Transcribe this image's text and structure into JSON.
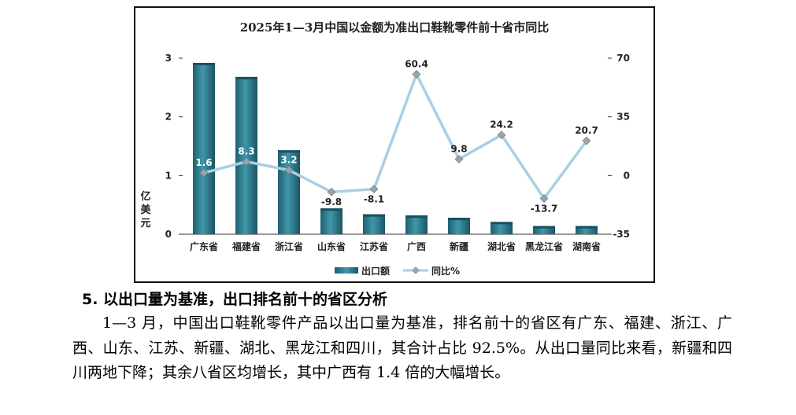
{
  "chart_data": {
    "type": "bar",
    "title": "2025年1—3月中国以金额为准出口鞋靴零件前十省市同比",
    "categories": [
      "广东省",
      "福建省",
      "浙江省",
      "山东省",
      "江苏省",
      "广西",
      "新疆",
      "湖北省",
      "黑龙江省",
      "湖南省"
    ],
    "series": [
      {
        "name": "出口额",
        "type": "bar",
        "axis": "left",
        "values": [
          2.92,
          2.68,
          1.43,
          0.44,
          0.34,
          0.32,
          0.28,
          0.21,
          0.14,
          0.14
        ]
      },
      {
        "name": "同比%",
        "type": "line",
        "axis": "right",
        "values": [
          1.6,
          8.3,
          3.2,
          -9.8,
          -8.1,
          60.4,
          9.8,
          24.2,
          -13.7,
          20.7
        ],
        "labels": [
          "1.6",
          "8.3",
          "3.2",
          "-9.8",
          "-8.1",
          "60.4",
          "9.8",
          "24.2",
          "-13.7",
          "20.7"
        ]
      }
    ],
    "ylabel": "亿美元",
    "ylim": [
      0,
      3
    ],
    "yticks": [
      "0",
      "1",
      "2",
      "3"
    ],
    "y2lim": [
      -35,
      70
    ],
    "y2ticks": [
      "-35",
      "0",
      "35",
      "70"
    ],
    "grid": false,
    "legend": "bottom",
    "colors": {
      "bar": "#2b7a8c",
      "bar_dark": "#1b5566",
      "line": "#a9cfe3",
      "marker": "#9aa4aa"
    }
  },
  "section_heading": "5. 以出口量为基准，出口排名前十的省区分析",
  "paragraph": "1—3 月，中国出口鞋靴零件产品以出口量为基准，排名前十的省区有广东、福建、浙江、广西、山东、江苏、新疆、湖北、黑龙江和四川，其合计占比 92.5%。从出口量同比来看，新疆和四川两地下降；其余八省区均增长，其中广西有 1.4 倍的大幅增长。"
}
